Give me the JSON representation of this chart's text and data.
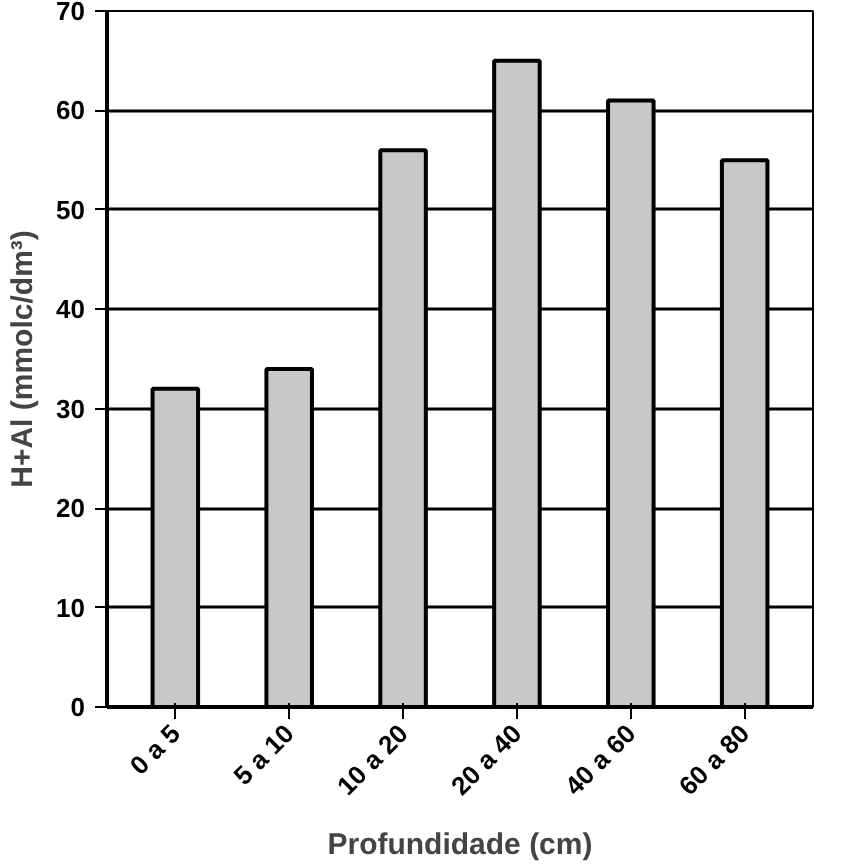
{
  "chart_data": {
    "type": "bar",
    "categories": [
      "0 a 5",
      "5 a 10",
      "10 a 20",
      "20 a 40",
      "40 a 60",
      "60 a 80"
    ],
    "values": [
      32,
      34,
      56,
      65,
      61,
      55
    ],
    "color": "#c8c8c8",
    "xlabel": "Profundidade (cm)",
    "ylabel": "H+Al (mmolc/dm³)",
    "ylim": [
      0,
      70
    ],
    "yticks": [
      0,
      10,
      20,
      30,
      40,
      50,
      60,
      70
    ],
    "grid": "y"
  }
}
